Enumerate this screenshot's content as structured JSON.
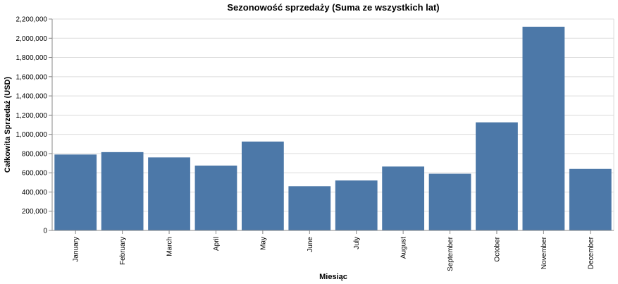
{
  "chart_data": {
    "type": "bar",
    "title": "Sezonowość sprzedaży (Suma ze wszystkich lat)",
    "xlabel": "Miesiąc",
    "ylabel": "Całkowita Sprzedaż (USD)",
    "categories": [
      "January",
      "February",
      "March",
      "April",
      "May",
      "June",
      "July",
      "August",
      "September",
      "October",
      "November",
      "December"
    ],
    "values": [
      790000,
      815000,
      760000,
      675000,
      925000,
      460000,
      520000,
      665000,
      590000,
      1125000,
      2120000,
      640000
    ],
    "ylim": [
      0,
      2200000
    ],
    "yticks": [
      0,
      200000,
      400000,
      600000,
      800000,
      1000000,
      1200000,
      1400000,
      1600000,
      1800000,
      2000000,
      2200000
    ],
    "ytick_labels": [
      "0",
      "200,000",
      "400,000",
      "600,000",
      "800,000",
      "1,000,000",
      "1,200,000",
      "1,400,000",
      "1,600,000",
      "1,800,000",
      "2,000,000",
      "2,200,000"
    ],
    "grid": true,
    "legend": "none",
    "bar_color": "#4c78a8"
  }
}
